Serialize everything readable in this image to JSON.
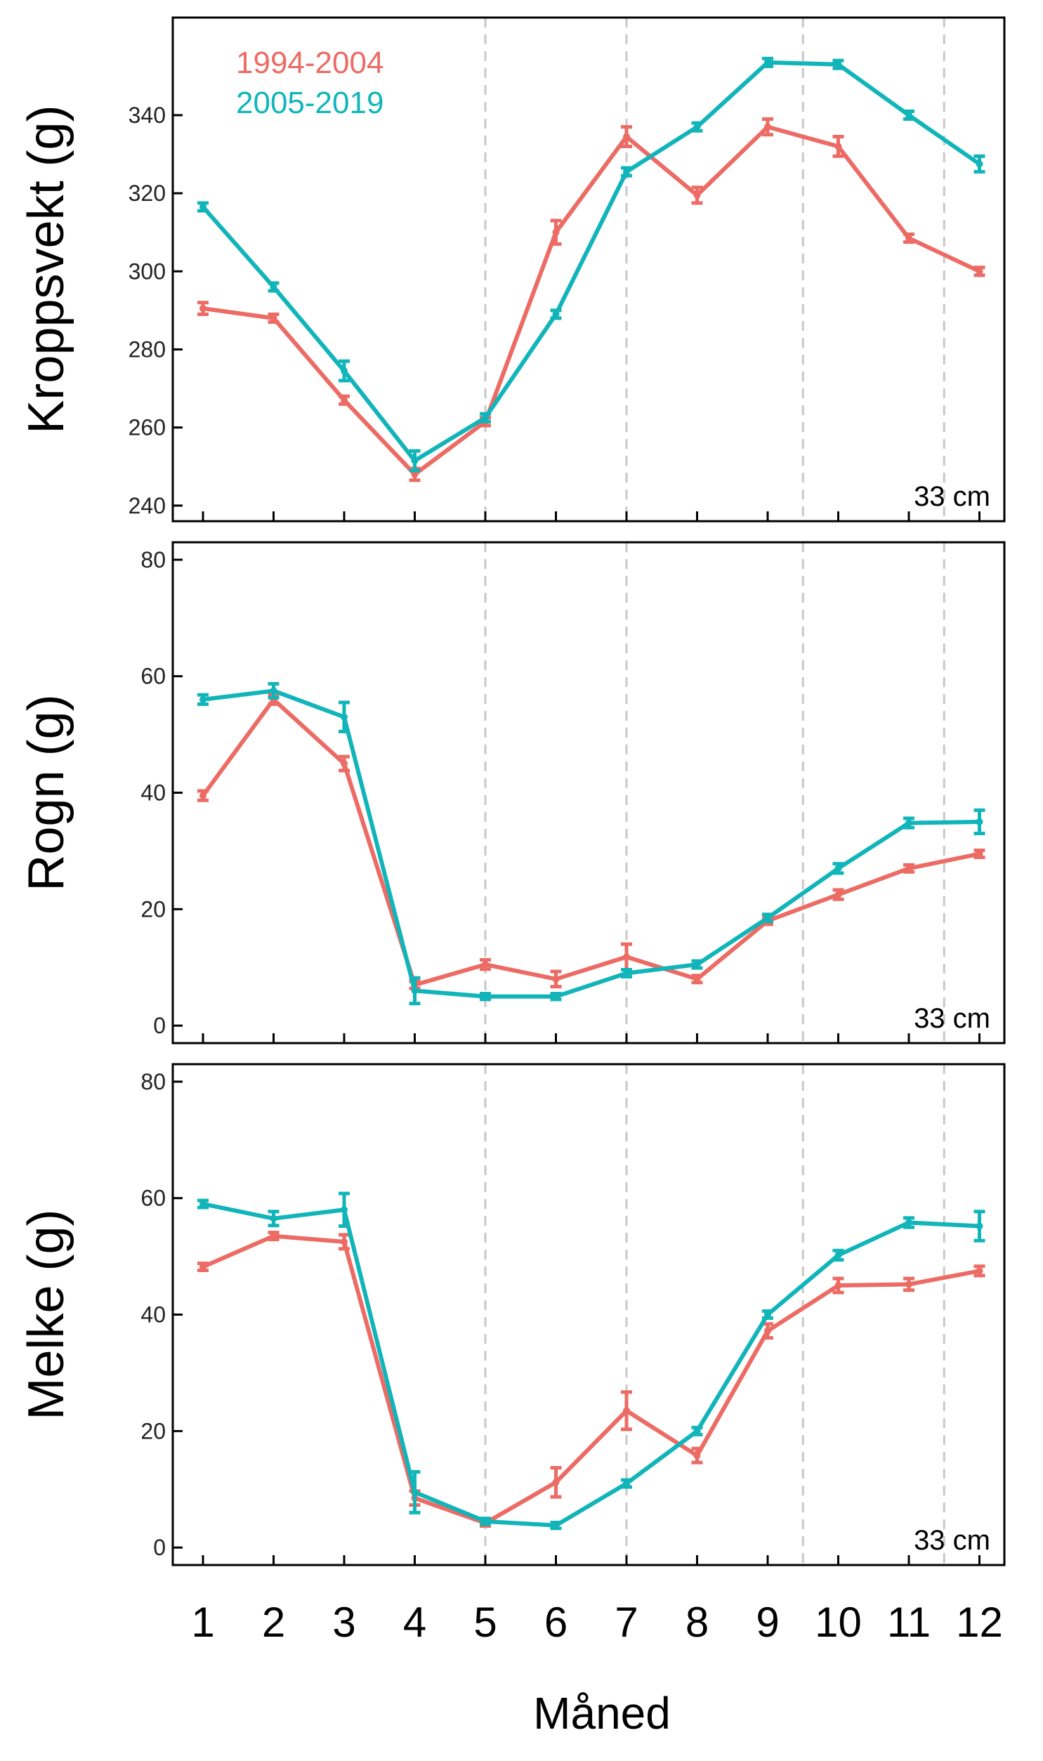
{
  "chart_data": {
    "type": "line",
    "x": [
      1,
      2,
      3,
      4,
      5,
      6,
      7,
      8,
      9,
      10,
      11,
      12
    ],
    "xlabel": "Måned",
    "x_ticks": [
      "1",
      "2",
      "3",
      "4",
      "5",
      "6",
      "7",
      "8",
      "9",
      "10",
      "11",
      "12"
    ],
    "vlines": [
      5,
      7,
      9.5,
      11.5
    ],
    "legend": {
      "placement": "top-left",
      "entries": [
        "1994-2004",
        "2005-2019"
      ]
    },
    "colors": {
      "1994-2004": "#ec6b64",
      "2005-2019": "#11b5b9",
      "vline": "#c8c8c8",
      "frame": "#000000"
    },
    "panels": [
      {
        "ylabel": "Kroppsvekt (g)",
        "ylim": [
          236,
          365
        ],
        "yticks": [
          240,
          260,
          280,
          300,
          320,
          340
        ],
        "annotation": "33 cm",
        "series": [
          {
            "name": "1994-2004",
            "values": [
              290.5,
              288,
              267,
              248,
              261.5,
              310,
              334.5,
              319.5,
              337,
              332,
              308.5,
              300
            ],
            "err": [
              1.5,
              1,
              1,
              1.5,
              1,
              3,
              2.5,
              2,
              2,
              2.5,
              1,
              1
            ]
          },
          {
            "name": "2005-2019",
            "values": [
              316.5,
              296,
              274.5,
              251.5,
              262.5,
              289,
              325.5,
              337,
              353.5,
              353,
              340,
              327.5
            ],
            "err": [
              1,
              1,
              2.5,
              2.5,
              1,
              1,
              1,
              1,
              1,
              1,
              1,
              2
            ]
          }
        ]
      },
      {
        "ylabel": "Rogn (g)",
        "ylim": [
          -3,
          83
        ],
        "yticks": [
          0,
          20,
          40,
          60,
          80
        ],
        "annotation": "33 cm",
        "series": [
          {
            "name": "1994-2004",
            "values": [
              39.5,
              56,
              45,
              7,
              10.5,
              8,
              11.8,
              8,
              18,
              22.5,
              27,
              29.5
            ],
            "err": [
              0.8,
              0.8,
              1.2,
              0.6,
              0.8,
              1.3,
              2.2,
              0.6,
              0.6,
              0.8,
              0.6,
              0.6
            ]
          },
          {
            "name": "2005-2019",
            "values": [
              56,
              57.5,
              53,
              6,
              5,
              5,
              9,
              10.5,
              18.5,
              27,
              34.8,
              35
            ],
            "err": [
              0.8,
              1.2,
              2.5,
              2.2,
              0.5,
              0.5,
              0.6,
              0.6,
              0.6,
              0.8,
              0.8,
              2
            ]
          }
        ]
      },
      {
        "ylabel": "Melke (g)",
        "ylim": [
          -3,
          83
        ],
        "yticks": [
          0,
          20,
          40,
          60,
          80
        ],
        "annotation": "33 cm",
        "series": [
          {
            "name": "1994-2004",
            "values": [
              48.2,
              53.5,
              52.5,
              8.5,
              4.2,
              11.2,
              23.5,
              15.8,
              37.2,
              45,
              45.2,
              47.5
            ],
            "err": [
              0.6,
              0.6,
              1.2,
              1.2,
              0.5,
              2.5,
              3.2,
              1.2,
              1.2,
              1.2,
              1,
              0.8
            ]
          },
          {
            "name": "2005-2019",
            "values": [
              59,
              56.5,
              58,
              9.5,
              4.5,
              3.8,
              11,
              20,
              40,
              50.2,
              55.8,
              55.2
            ],
            "err": [
              0.6,
              1.2,
              2.8,
              3.5,
              0.5,
              0.5,
              0.6,
              0.6,
              0.6,
              0.8,
              0.8,
              2.5
            ]
          }
        ]
      }
    ]
  }
}
